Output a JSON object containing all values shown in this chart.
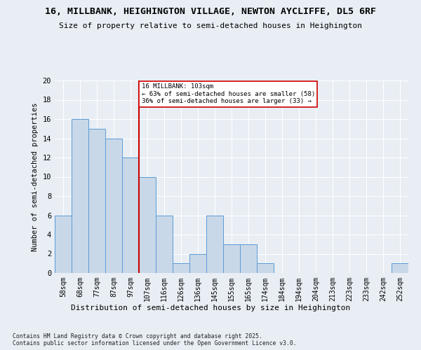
{
  "title_line1": "16, MILLBANK, HEIGHINGTON VILLAGE, NEWTON AYCLIFFE, DL5 6RF",
  "title_line2": "Size of property relative to semi-detached houses in Heighington",
  "xlabel": "Distribution of semi-detached houses by size in Heighington",
  "ylabel": "Number of semi-detached properties",
  "footer": "Contains HM Land Registry data © Crown copyright and database right 2025.\nContains public sector information licensed under the Open Government Licence v3.0.",
  "categories": [
    "58sqm",
    "68sqm",
    "77sqm",
    "87sqm",
    "97sqm",
    "107sqm",
    "116sqm",
    "126sqm",
    "136sqm",
    "145sqm",
    "155sqm",
    "165sqm",
    "174sqm",
    "184sqm",
    "194sqm",
    "204sqm",
    "213sqm",
    "223sqm",
    "233sqm",
    "242sqm",
    "252sqm"
  ],
  "values": [
    6,
    16,
    15,
    14,
    12,
    10,
    6,
    1,
    2,
    6,
    3,
    3,
    1,
    0,
    0,
    0,
    0,
    0,
    0,
    0,
    1
  ],
  "bar_color": "#c8d8e8",
  "bar_edge_color": "#5b9bd5",
  "bg_color": "#e8eef4",
  "grid_color": "#ffffff",
  "annotation_line1": "16 MILLBANK: 103sqm",
  "annotation_line2": "← 63% of semi-detached houses are smaller (58)",
  "annotation_line3": "36% of semi-detached houses are larger (33) →",
  "vline_x": 4.5,
  "vline_color": "#cc0000",
  "annotation_box_color": "#ffffff",
  "annotation_box_edge": "#cc0000",
  "ylim": [
    0,
    20
  ],
  "yticks": [
    0,
    2,
    4,
    6,
    8,
    10,
    12,
    14,
    16,
    18,
    20
  ]
}
